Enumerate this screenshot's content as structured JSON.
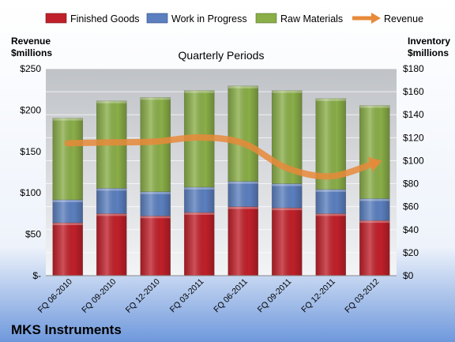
{
  "chart_data": {
    "type": "bar",
    "subtitle": "Quarterly Periods",
    "company": "MKS Instruments",
    "categories": [
      "FQ 06-2010",
      "FQ 09-2010",
      "FQ 12-2010",
      "FQ 03-2011",
      "FQ 06-2011",
      "FQ 09-2011",
      "FQ 12-2011",
      "FQ 03-2012"
    ],
    "series": [
      {
        "name": "Finished Goods",
        "color": "#c0202a",
        "axis": "right",
        "values": [
          46,
          54,
          52,
          55,
          60,
          59,
          54,
          48
        ]
      },
      {
        "name": "Work in Progress",
        "color": "#5b7fbf",
        "axis": "right",
        "values": [
          20,
          22,
          21,
          22,
          22,
          21,
          21,
          19
        ]
      },
      {
        "name": "Raw Materials",
        "color": "#8aae48",
        "axis": "right",
        "values": [
          71,
          76,
          82,
          84,
          83,
          81,
          79,
          81
        ]
      }
    ],
    "line_series": {
      "name": "Revenue",
      "color": "#e88a3a",
      "axis": "left",
      "values": [
        160,
        161,
        162,
        167,
        160,
        130,
        120,
        136
      ]
    },
    "y_left": {
      "label_line1": "Revenue",
      "label_line2": "$millions",
      "min": 0,
      "max": 250,
      "ticks": [
        "$-",
        "$50",
        "$100",
        "$150",
        "$200",
        "$250"
      ]
    },
    "y_right": {
      "label_line1": "Inventory",
      "label_line2": "$millions",
      "min": 0,
      "max": 180,
      "ticks": [
        "$0",
        "$20",
        "$40",
        "$60",
        "$80",
        "$100",
        "$120",
        "$140",
        "$160",
        "$180"
      ]
    },
    "legend_position": "top",
    "grid": true,
    "stacked": true
  }
}
